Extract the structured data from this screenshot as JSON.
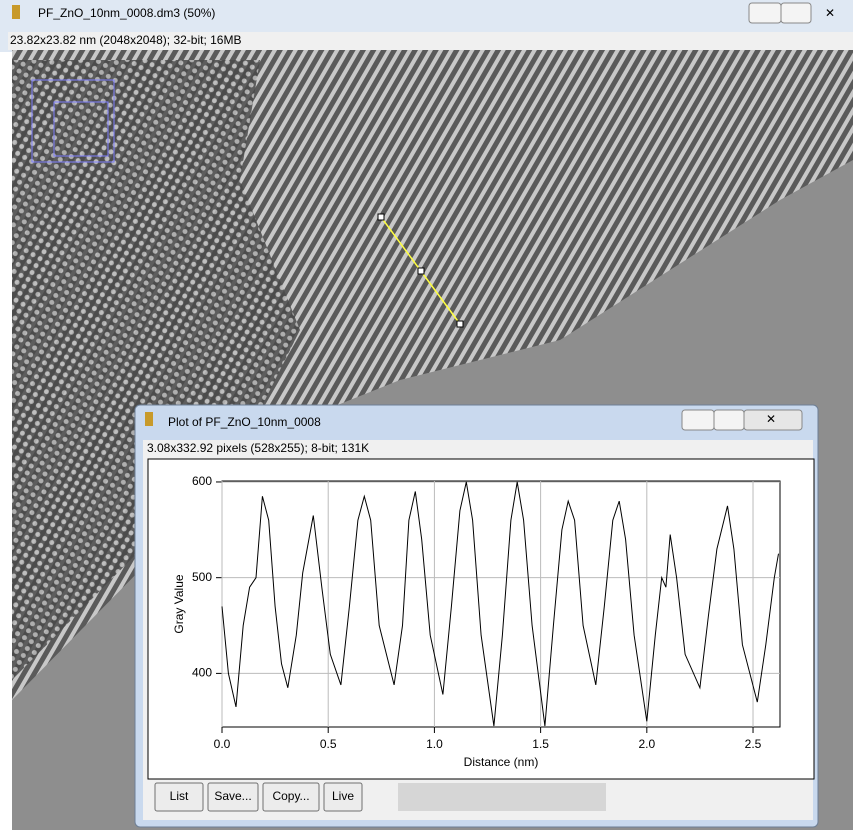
{
  "main_window": {
    "title": "PF_ZnO_10nm_0008.dm3 (50%)",
    "info": "23.82x23.82 nm (2048x2048); 32-bit; 16MB"
  },
  "plot_window": {
    "title": "Plot of PF_ZnO_10nm_0008",
    "info": "3.08x332.92 pixels (528x255); 8-bit; 131K",
    "buttons": [
      "List",
      "Save...",
      "Copy...",
      "Live"
    ]
  },
  "chart_data": {
    "type": "line",
    "xlabel": "Distance (nm)",
    "ylabel": "Gray Value",
    "color": "#000000",
    "grid": true,
    "xlim": [
      0,
      2.627
    ],
    "ylim": [
      344,
      601
    ],
    "xticks": [
      {
        "value": 0,
        "label": "0.0"
      },
      0.5,
      {
        "value": 1,
        "label": "1.0"
      },
      1.5,
      {
        "value": 2,
        "label": "2.0"
      },
      2.5
    ],
    "yticks": [
      400,
      500,
      600
    ],
    "x": [
      0,
      0.03,
      0.066,
      0.1,
      0.13,
      0.16,
      0.19,
      0.22,
      0.25,
      0.28,
      0.31,
      0.35,
      0.38,
      0.43,
      0.47,
      0.51,
      0.56,
      0.6,
      0.64,
      0.67,
      0.7,
      0.74,
      0.81,
      0.85,
      0.88,
      0.91,
      0.94,
      0.98,
      1.04,
      1.08,
      1.12,
      1.15,
      1.18,
      1.22,
      1.28,
      1.32,
      1.36,
      1.39,
      1.42,
      1.46,
      1.52,
      1.56,
      1.6,
      1.63,
      1.66,
      1.7,
      1.76,
      1.8,
      1.84,
      1.87,
      1.9,
      1.94,
      2.0,
      2.04,
      2.07,
      2.09,
      2.11,
      2.14,
      2.18,
      2.25,
      2.29,
      2.33,
      2.38,
      2.41,
      2.45,
      2.52,
      2.56,
      2.6,
      2.62
    ],
    "values": [
      470,
      400,
      365,
      450,
      490,
      500,
      585,
      560,
      470,
      410,
      385,
      440,
      505,
      565,
      490,
      420,
      388,
      470,
      560,
      585,
      560,
      450,
      388,
      450,
      560,
      590,
      540,
      440,
      378,
      470,
      570,
      600,
      560,
      440,
      345,
      440,
      560,
      600,
      560,
      450,
      345,
      450,
      550,
      580,
      560,
      450,
      388,
      470,
      560,
      580,
      540,
      440,
      350,
      440,
      500,
      490,
      545,
      500,
      420,
      385,
      460,
      530,
      575,
      530,
      430,
      370,
      430,
      500,
      525
    ]
  }
}
